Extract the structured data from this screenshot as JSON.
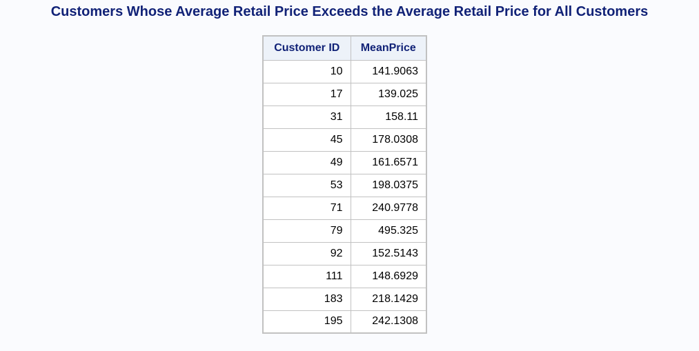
{
  "title": "Customers Whose Average Retail Price Exceeds the Average Retail Price for All Customers",
  "table": {
    "columns": [
      "Customer ID",
      "MeanPrice"
    ],
    "rows": [
      [
        "10",
        "141.9063"
      ],
      [
        "17",
        "139.025"
      ],
      [
        "31",
        "158.11"
      ],
      [
        "45",
        "178.0308"
      ],
      [
        "49",
        "161.6571"
      ],
      [
        "53",
        "198.0375"
      ],
      [
        "71",
        "240.9778"
      ],
      [
        "79",
        "495.325"
      ],
      [
        "92",
        "152.5143"
      ],
      [
        "111",
        "148.6929"
      ],
      [
        "183",
        "218.1429"
      ],
      [
        "195",
        "242.1308"
      ]
    ]
  },
  "colors": {
    "title": "#112277",
    "header_bg": "#edf2f9",
    "border": "#c1c1c1",
    "page_bg": "#fafbfe"
  }
}
